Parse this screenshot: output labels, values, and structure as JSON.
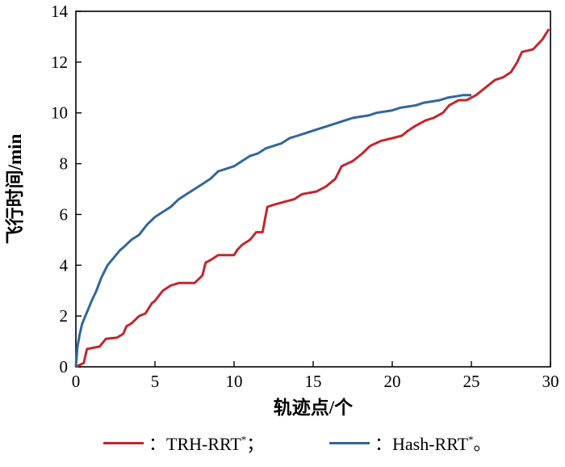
{
  "chart_data": {
    "type": "line",
    "xlabel": "轨迹点/个",
    "ylabel": "飞行时间/min",
    "xlim": [
      0,
      30
    ],
    "ylim": [
      0,
      14
    ],
    "xticks": [
      "0",
      "5",
      "10",
      "15",
      "20",
      "25",
      "30"
    ],
    "yticks": [
      "0",
      "2",
      "4",
      "6",
      "8",
      "10",
      "12",
      "14"
    ],
    "grid": false,
    "legend_position": "bottom",
    "series": [
      {
        "name": "TRH-RRT*",
        "legend_prefix": "：TRH-RRT",
        "legend_suffix": "；",
        "color": "#c0272d",
        "x": [
          0,
          0.5,
          0.7,
          1.5,
          1.9,
          2.6,
          3.0,
          3.2,
          3.5,
          4.0,
          4.4,
          4.8,
          5.0,
          5.5,
          6.0,
          6.5,
          7.5,
          8.0,
          8.2,
          8.5,
          9.0,
          10.0,
          10.2,
          10.5,
          11.0,
          11.4,
          11.8,
          12.1,
          12.6,
          13.2,
          13.8,
          14.3,
          15.2,
          15.8,
          16.4,
          16.8,
          17.5,
          18.1,
          18.6,
          19.3,
          20.0,
          20.6,
          21.0,
          21.5,
          22.1,
          22.6,
          23.2,
          23.6,
          24.2,
          24.7,
          25.3,
          25.9,
          26.5,
          27.0,
          27.5,
          27.9,
          28.2,
          28.9,
          29.5,
          29.9
        ],
        "y": [
          0,
          0.15,
          0.7,
          0.8,
          1.1,
          1.15,
          1.3,
          1.6,
          1.7,
          2.0,
          2.1,
          2.5,
          2.6,
          3.0,
          3.2,
          3.3,
          3.3,
          3.6,
          4.1,
          4.2,
          4.4,
          4.4,
          4.6,
          4.8,
          5.0,
          5.3,
          5.3,
          6.3,
          6.4,
          6.5,
          6.6,
          6.8,
          6.9,
          7.1,
          7.4,
          7.9,
          8.1,
          8.4,
          8.7,
          8.9,
          9.0,
          9.1,
          9.3,
          9.5,
          9.7,
          9.8,
          10.0,
          10.3,
          10.5,
          10.5,
          10.7,
          11.0,
          11.3,
          11.4,
          11.6,
          12.0,
          12.4,
          12.5,
          12.9,
          13.3
        ]
      },
      {
        "name": "Hash-RRT*",
        "legend_prefix": "：Hash-RRT",
        "legend_suffix": "。",
        "color": "#336699",
        "x": [
          0,
          0.1,
          0.25,
          0.4,
          0.6,
          0.8,
          1.0,
          1.3,
          1.6,
          2.0,
          2.4,
          2.8,
          3.0,
          3.5,
          4.0,
          4.5,
          5.0,
          5.5,
          6.0,
          6.5,
          7.0,
          7.5,
          8.0,
          8.5,
          9.0,
          9.5,
          10.0,
          10.5,
          11.0,
          11.5,
          12.0,
          12.5,
          13.0,
          13.5,
          14.0,
          14.5,
          15.0,
          15.5,
          16.0,
          16.5,
          17.0,
          17.5,
          18.0,
          18.5,
          19.0,
          19.5,
          20.0,
          20.5,
          21.0,
          21.5,
          22.0,
          22.5,
          23.0,
          23.5,
          24.0,
          24.5,
          24.8,
          25.0
        ],
        "y": [
          0,
          0.8,
          1.3,
          1.7,
          2.0,
          2.3,
          2.6,
          3.0,
          3.5,
          4.0,
          4.3,
          4.6,
          4.7,
          5.0,
          5.2,
          5.6,
          5.9,
          6.1,
          6.3,
          6.6,
          6.8,
          7.0,
          7.2,
          7.4,
          7.7,
          7.8,
          7.9,
          8.1,
          8.3,
          8.4,
          8.6,
          8.7,
          8.8,
          9.0,
          9.1,
          9.2,
          9.3,
          9.4,
          9.5,
          9.6,
          9.7,
          9.8,
          9.85,
          9.9,
          10.0,
          10.05,
          10.1,
          10.2,
          10.25,
          10.3,
          10.4,
          10.45,
          10.5,
          10.6,
          10.65,
          10.7,
          10.7,
          10.7
        ]
      }
    ]
  }
}
